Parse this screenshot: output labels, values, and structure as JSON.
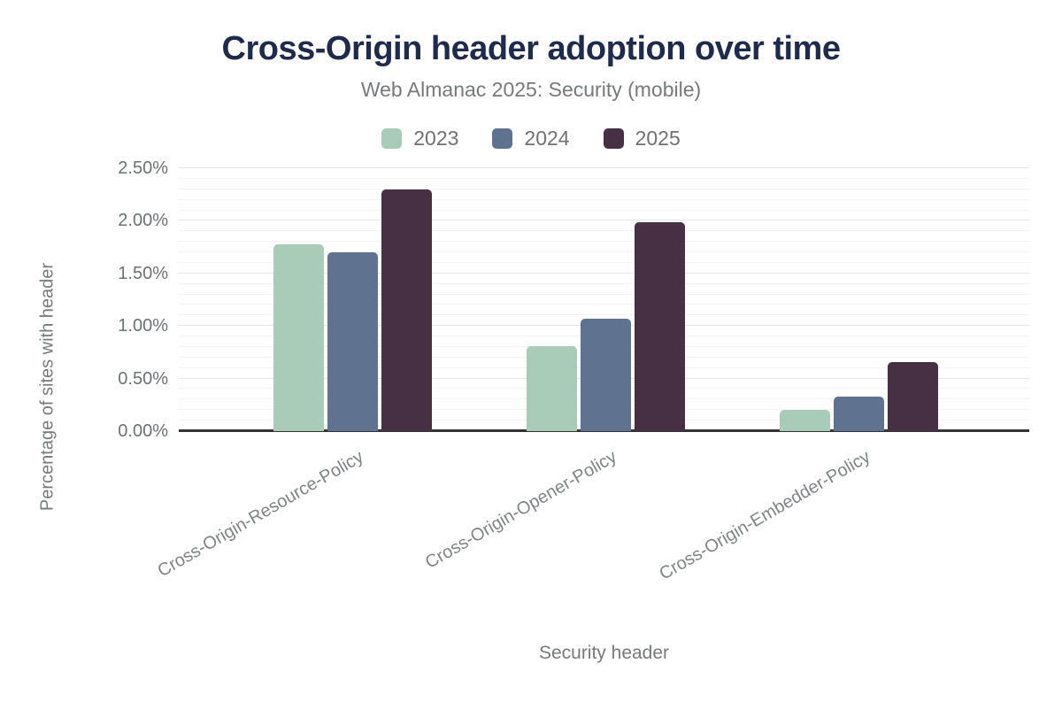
{
  "chart_data": {
    "type": "bar",
    "title": "Cross-Origin header adoption over time",
    "subtitle": "Web Almanac 2025: Security (mobile)",
    "xlabel": "Security header",
    "ylabel": "Percentage of sites with header",
    "categories": [
      "Cross-Origin-Resource-Policy",
      "Cross-Origin-Opener-Policy",
      "Cross-Origin-Embedder-Policy"
    ],
    "series": [
      {
        "name": "2023",
        "color": "#a9ccb8",
        "values": [
          1.78,
          0.81,
          0.2
        ]
      },
      {
        "name": "2024",
        "color": "#5f7390",
        "values": [
          1.7,
          1.07,
          0.33
        ]
      },
      {
        "name": "2025",
        "color": "#473044",
        "values": [
          2.3,
          1.99,
          0.66
        ]
      }
    ],
    "ylim": [
      0,
      2.5
    ],
    "ytick_step": 0.5,
    "yticks": [
      "0.00%",
      "0.50%",
      "1.00%",
      "1.50%",
      "2.00%",
      "2.50%"
    ],
    "grid": "horizontal, minor every 0.1%, major every 0.5%",
    "legend_position": "top"
  },
  "colors": {
    "title_text": "#1e2b4d",
    "muted_text": "#77797b",
    "axis_line": "#343434",
    "grid_major": "#e5e5e5",
    "grid_minor": "#f4f4f4",
    "background": "#ffffff"
  }
}
